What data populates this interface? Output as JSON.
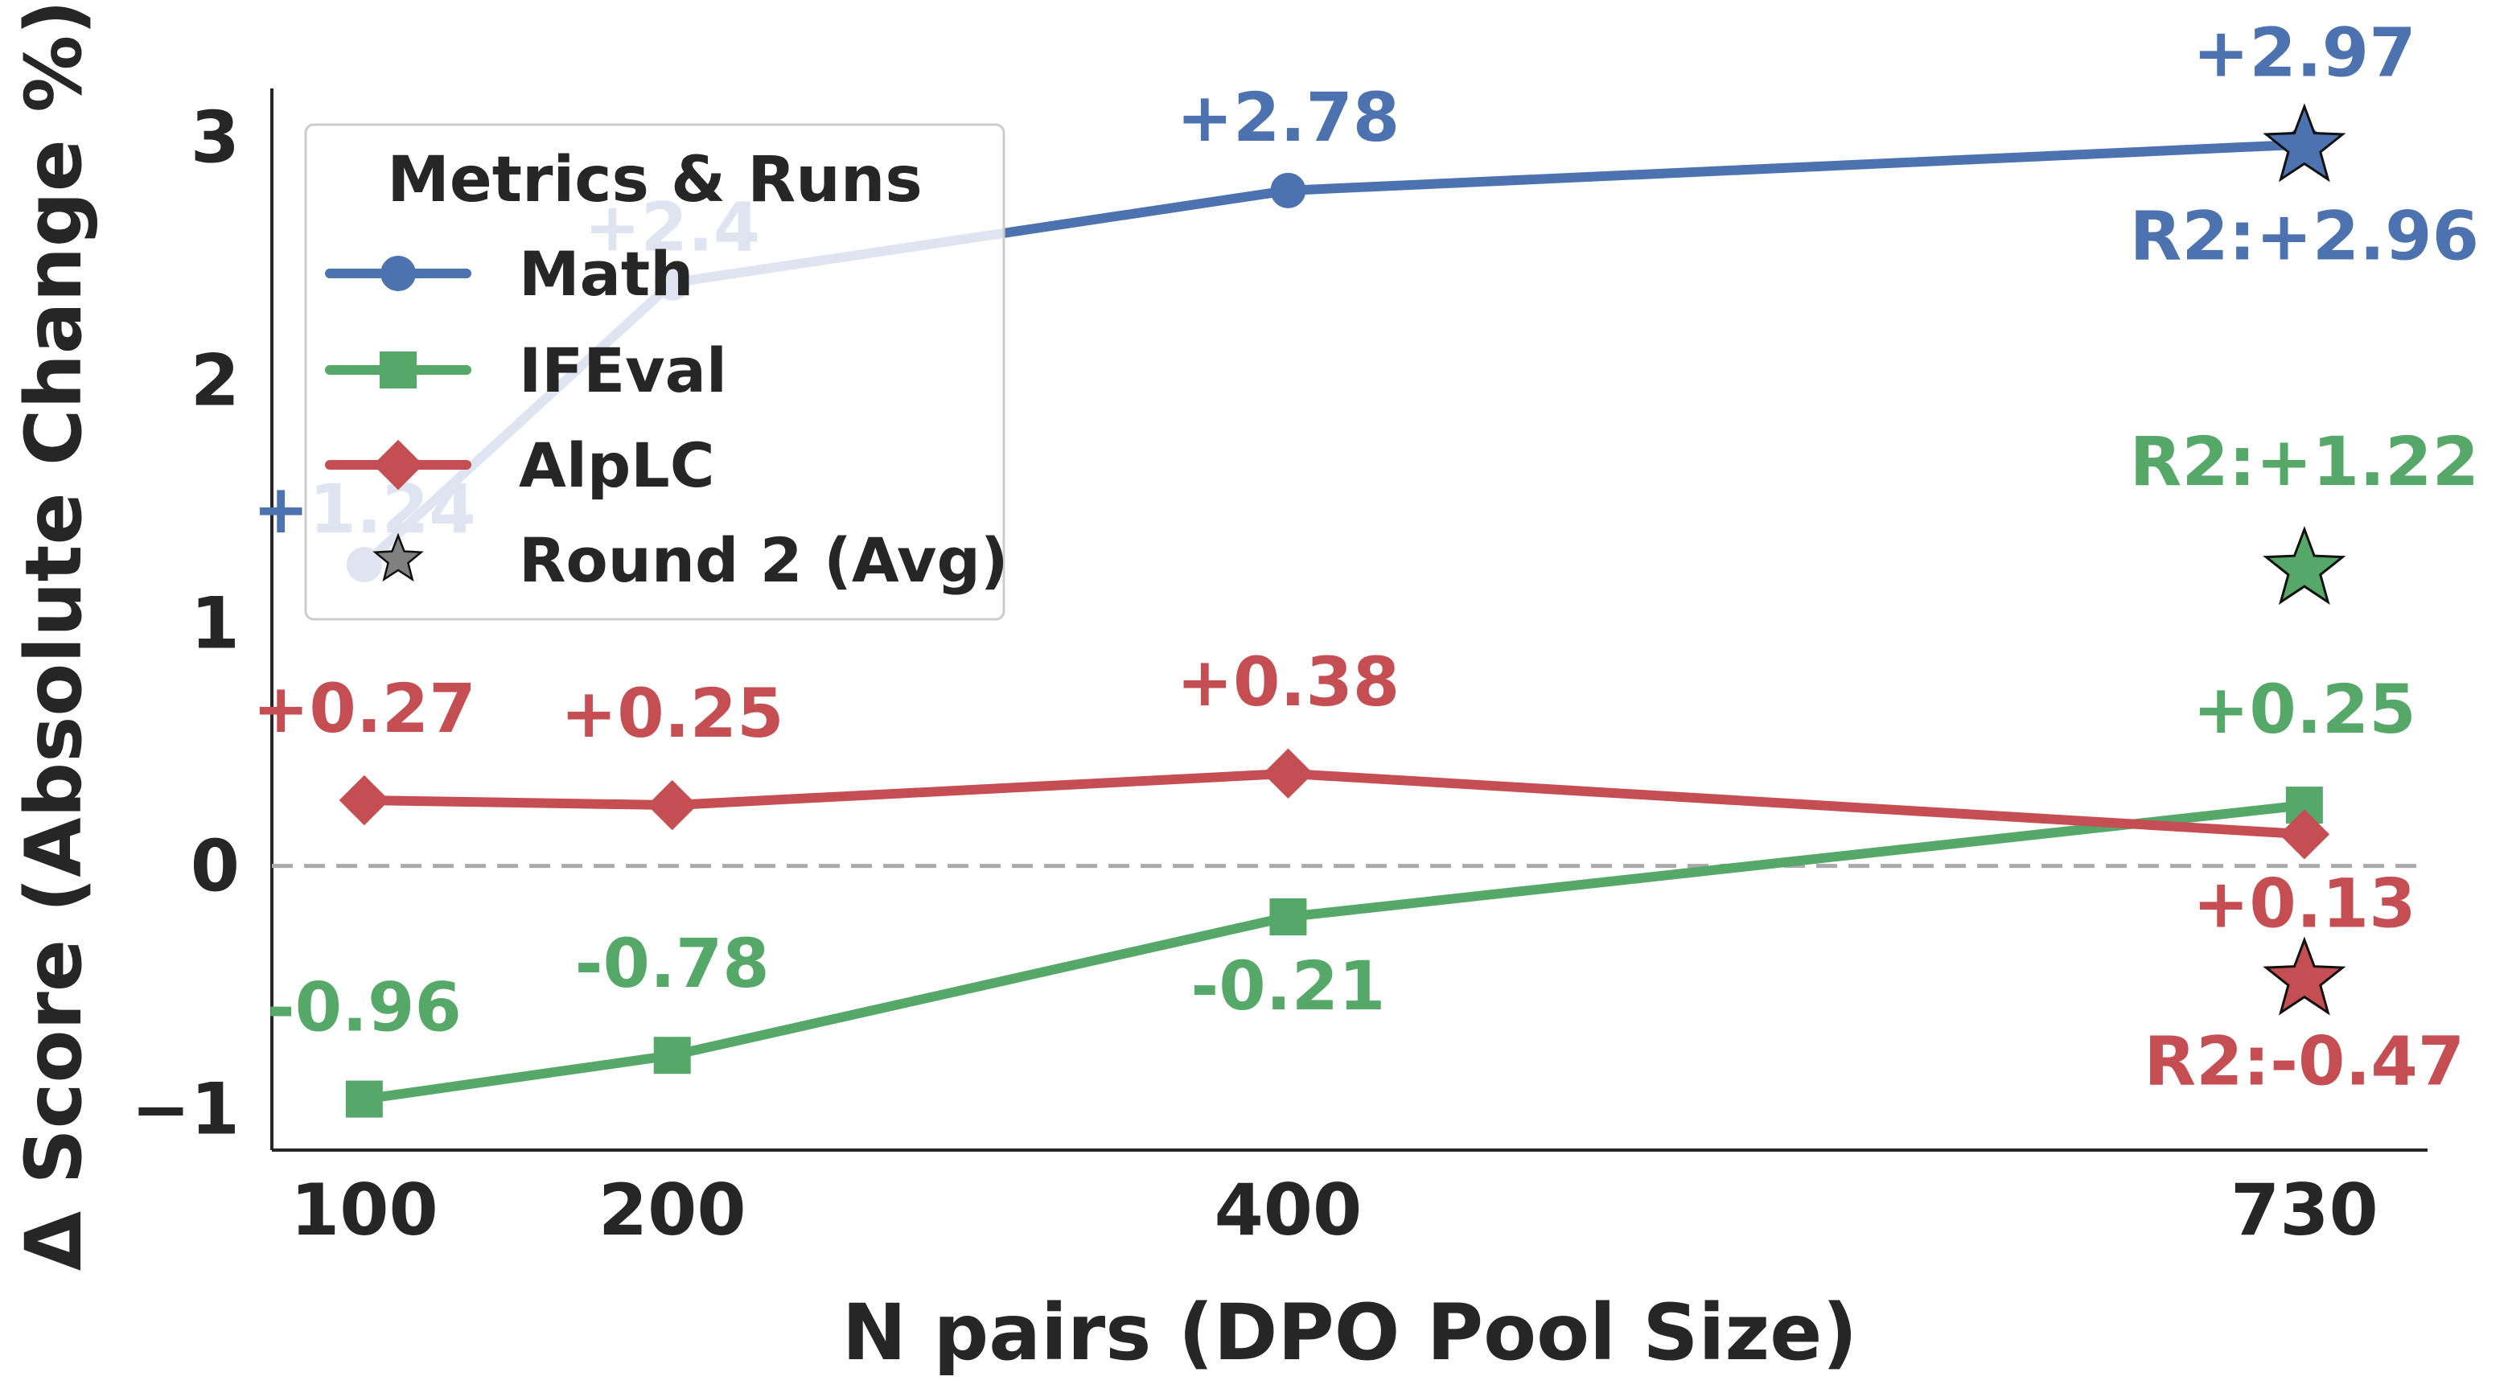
{
  "chart_data": {
    "type": "line",
    "title": "",
    "xlabel": "N pairs (DPO Pool Size)",
    "ylabel": "Δ Score (Absolute Change %)",
    "x": [
      100,
      200,
      400,
      730
    ],
    "x_tick_labels": [
      "100",
      "200",
      "400",
      "730"
    ],
    "y_ticks": [
      -1,
      0,
      1,
      2,
      3
    ],
    "y_tick_labels": [
      "−1",
      "0",
      "1",
      "2",
      "3"
    ],
    "xlim": [
      70,
      770
    ],
    "ylim": [
      -1.17,
      3.2
    ],
    "grid": false,
    "reference_line_y": 0,
    "legend": {
      "title": "Metrics & Runs",
      "placement": "upper-left",
      "entries": [
        "Math",
        "IFEval",
        "AlpLC",
        "Round 2 (Avg)"
      ]
    },
    "series": [
      {
        "name": "Math",
        "color": "#4c72b0",
        "marker": "circle",
        "values": [
          1.24,
          2.4,
          2.78,
          2.97
        ],
        "labels": [
          "+1.24",
          "+2.4",
          "+2.78",
          "+2.97"
        ],
        "round2": {
          "x": 730,
          "value": 2.96,
          "label": "R2:+2.96"
        }
      },
      {
        "name": "IFEval",
        "color": "#55a868",
        "marker": "square",
        "values": [
          -0.96,
          -0.78,
          -0.21,
          0.25
        ],
        "labels": [
          "-0.96",
          "-0.78",
          "-0.21",
          "+0.25"
        ],
        "round2": {
          "x": 730,
          "value": 1.22,
          "label": "R2:+1.22"
        }
      },
      {
        "name": "AlpLC",
        "color": "#c44e52",
        "marker": "diamond",
        "values": [
          0.27,
          0.25,
          0.38,
          0.13
        ],
        "labels": [
          "+0.27",
          "+0.25",
          "+0.38",
          "+0.13"
        ],
        "round2": {
          "x": 730,
          "value": -0.47,
          "label": "R2:-0.47"
        }
      }
    ]
  }
}
